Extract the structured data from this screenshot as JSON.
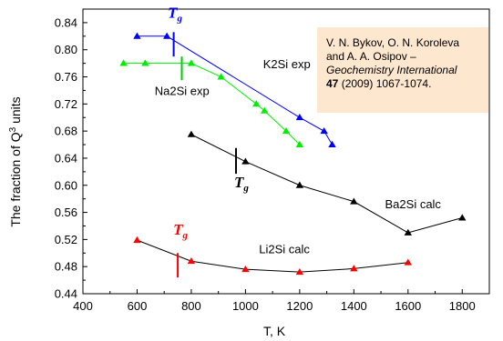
{
  "chart_data": {
    "type": "line",
    "xlabel": "T, K",
    "ylabel_prefix": "The fraction of Q",
    "ylabel_sup": "3",
    "ylabel_suffix": " units",
    "xlim": [
      400,
      1900
    ],
    "ylim": [
      0.44,
      0.86
    ],
    "xticks": [
      400,
      600,
      800,
      1000,
      1200,
      1400,
      1600,
      1800
    ],
    "yticks": [
      0.44,
      0.48,
      0.52,
      0.56,
      0.6,
      0.64,
      0.68,
      0.72,
      0.76,
      0.8,
      0.84
    ],
    "grid": false,
    "series": [
      {
        "name": "K2Si exp",
        "color": "#0000ff",
        "line_color": "#0000ff",
        "x": [
          600,
          710,
          1200,
          1290,
          1320
        ],
        "y": [
          0.82,
          0.82,
          0.7,
          0.68,
          0.66
        ]
      },
      {
        "name": "Na2Si exp",
        "color": "#00ee00",
        "line_color": "#00ee00",
        "x": [
          550,
          630,
          800,
          910,
          1040,
          1070,
          1150,
          1200
        ],
        "y": [
          0.78,
          0.78,
          0.78,
          0.76,
          0.72,
          0.71,
          0.68,
          0.66
        ]
      },
      {
        "name": "Ba2Si calc",
        "color": "#000000",
        "line_color": "#000000",
        "x": [
          800,
          1000,
          1200,
          1400,
          1600,
          1800
        ],
        "y": [
          0.675,
          0.635,
          0.6,
          0.576,
          0.53,
          0.552
        ]
      },
      {
        "name": "Li2Si calc",
        "color": "#ff0000",
        "line_color": "#000000",
        "x": [
          600,
          800,
          1000,
          1200,
          1400,
          1600
        ],
        "y": [
          0.519,
          0.488,
          0.476,
          0.472,
          0.477,
          0.486
        ]
      }
    ],
    "tg_markers": [
      {
        "series": "K2Si exp",
        "x": 735,
        "y_low": 0.79,
        "y_high": 0.826,
        "color": "#0000ff"
      },
      {
        "series": "Na2Si exp",
        "x": 765,
        "y_low": 0.755,
        "y_high": 0.79,
        "color": "#00cc00"
      },
      {
        "series": "Ba2Si calc",
        "x": 965,
        "y_low": 0.617,
        "y_high": 0.655,
        "color": "#000000"
      },
      {
        "series": "Li2Si calc",
        "x": 750,
        "y_low": 0.464,
        "y_high": 0.5,
        "color": "#ff0000"
      }
    ],
    "tg_labels": [
      {
        "main": "T",
        "sub": "g",
        "color": "#0000ff",
        "x": 740,
        "y": 0.847
      },
      {
        "main": "T",
        "sub": "g",
        "color": "#000000",
        "x": 985,
        "y": 0.597
      },
      {
        "main": "T",
        "sub": "g",
        "color": "#ff0000",
        "x": 760,
        "y": 0.527
      }
    ],
    "series_labels": [
      {
        "text": "K2Si exp",
        "x": 1065,
        "y": 0.773
      },
      {
        "text": "Na2Si exp",
        "x": 665,
        "y": 0.733
      },
      {
        "text": "Ba2Si calc",
        "x": 1515,
        "y": 0.566
      },
      {
        "text": "Li2Si calc",
        "x": 1050,
        "y": 0.5
      }
    ]
  },
  "reference": {
    "line1": "V. N. Bykov, O. N. Koroleva",
    "line2": "and A. A. Osipov –",
    "journal": "Geochemistry International",
    "volume": "47",
    "rest": " (2009) 1067-1074."
  }
}
